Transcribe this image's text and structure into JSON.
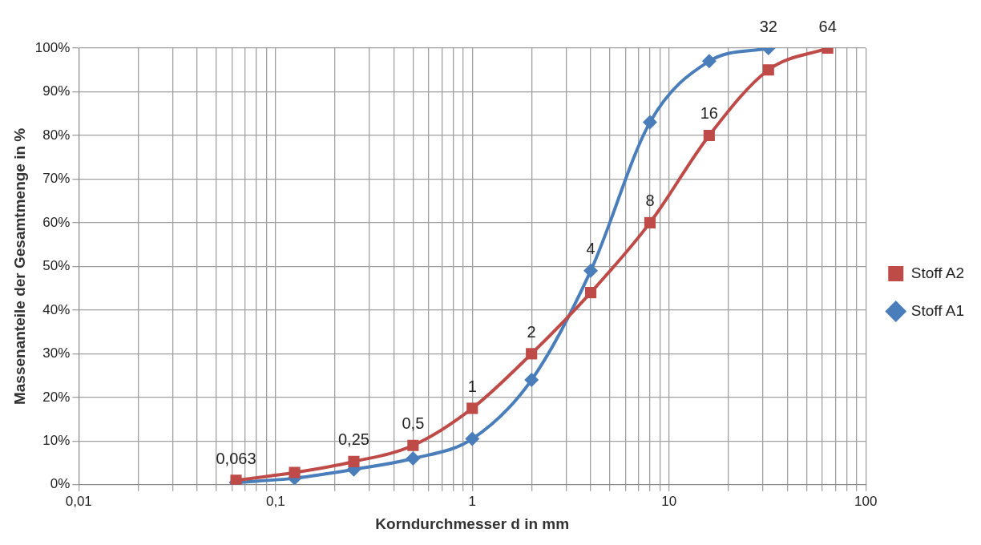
{
  "chart_data": {
    "type": "line",
    "xlabel": "Korndurchmesser d in mm",
    "ylabel": "Massenanteile der Gesamtmenge in %",
    "log": "x",
    "xlim": [
      0.01,
      100
    ],
    "xticks": [
      {
        "value": 0.01,
        "label": "0,01"
      },
      {
        "value": 0.02,
        "label": null
      },
      {
        "value": 0.03,
        "label": null
      },
      {
        "value": 0.04,
        "label": null
      },
      {
        "value": 0.05,
        "label": null
      },
      {
        "value": 0.06,
        "label": null
      },
      {
        "value": 0.07,
        "label": null
      },
      {
        "value": 0.08,
        "label": null
      },
      {
        "value": 0.09,
        "label": null
      },
      {
        "value": 0.1,
        "label": "0,1"
      },
      {
        "value": 0.2,
        "label": null
      },
      {
        "value": 0.3,
        "label": null
      },
      {
        "value": 0.4,
        "label": null
      },
      {
        "value": 0.5,
        "label": null
      },
      {
        "value": 0.6,
        "label": null
      },
      {
        "value": 0.7,
        "label": null
      },
      {
        "value": 0.8,
        "label": null
      },
      {
        "value": 0.9,
        "label": null
      },
      1,
      {
        "value": 2,
        "label": null
      },
      {
        "value": 3,
        "label": null
      },
      {
        "value": 4,
        "label": null
      },
      {
        "value": 5,
        "label": null
      },
      {
        "value": 6,
        "label": null
      },
      {
        "value": 7,
        "label": null
      },
      {
        "value": 8,
        "label": null
      },
      {
        "value": 9,
        "label": null
      },
      10,
      {
        "value": 20,
        "label": null
      },
      {
        "value": 30,
        "label": null
      },
      {
        "value": 40,
        "label": null
      },
      {
        "value": 50,
        "label": null
      },
      {
        "value": 60,
        "label": null
      },
      {
        "value": 70,
        "label": null
      },
      {
        "value": 80,
        "label": null
      },
      {
        "value": 90,
        "label": null
      },
      100
    ],
    "ylim": [
      0,
      100
    ],
    "yticks": [
      {
        "value": 0,
        "label": "0%"
      },
      {
        "value": 10,
        "label": "10%"
      },
      {
        "value": 20,
        "label": "20%"
      },
      {
        "value": 30,
        "label": "30%"
      },
      {
        "value": 40,
        "label": "40%"
      },
      {
        "value": 50,
        "label": "50%"
      },
      {
        "value": 60,
        "label": "60%"
      },
      {
        "value": 70,
        "label": "70%"
      },
      {
        "value": 80,
        "label": "80%"
      },
      {
        "value": 90,
        "label": "90%"
      },
      {
        "value": 100,
        "label": "100%"
      }
    ],
    "grid": true,
    "legend": "right",
    "series": [
      {
        "name": "Stoff A1",
        "color": "#4a7ebb",
        "marker": "diamond",
        "x": [
          0.063,
          0.125,
          0.25,
          0.5,
          1,
          2,
          4,
          8,
          16,
          32
        ],
        "values": [
          0.5,
          1.5,
          3.5,
          6,
          10.5,
          24,
          49,
          83,
          97,
          100
        ]
      },
      {
        "name": "Stoff A2",
        "color": "#be4b48",
        "marker": "square",
        "x": [
          0.063,
          0.125,
          0.25,
          0.5,
          1,
          2,
          4,
          8,
          16,
          32,
          64
        ],
        "values": [
          1,
          2.8,
          5.3,
          9,
          17.5,
          30,
          44,
          60,
          80,
          95,
          100
        ]
      }
    ],
    "annotations": [
      {
        "text": "0,063",
        "x": 0.063,
        "y": 1
      },
      {
        "text": "0,25",
        "x": 0.25,
        "y": 5.3
      },
      {
        "text": "0,5",
        "x": 0.5,
        "y": 9
      },
      {
        "text": "1",
        "x": 1,
        "y": 17.5
      },
      {
        "text": "2",
        "x": 2,
        "y": 30
      },
      {
        "text": "4",
        "x": 4,
        "y": 49
      },
      {
        "text": "8",
        "x": 8,
        "y": 60
      },
      {
        "text": "16",
        "x": 16,
        "y": 80
      },
      {
        "text": "32",
        "x": 32,
        "y": 100
      },
      {
        "text": "64",
        "x": 64,
        "y": 100
      }
    ]
  }
}
